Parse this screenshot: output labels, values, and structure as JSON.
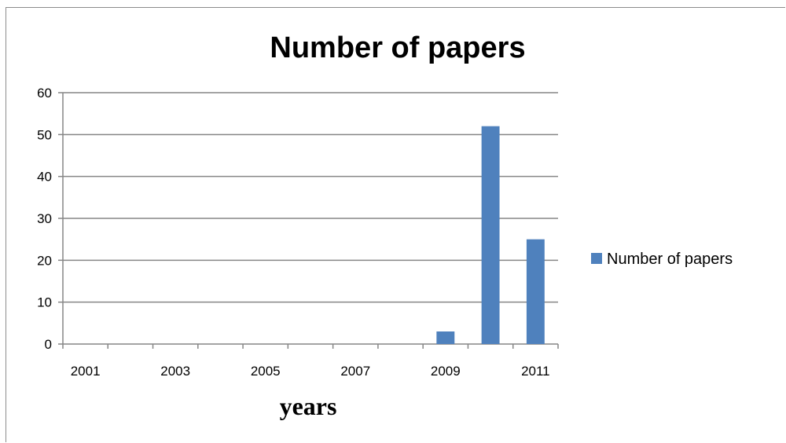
{
  "chart_data": {
    "type": "bar",
    "title": "Number of papers",
    "xlabel": "years",
    "ylabel": "",
    "categories": [
      "2001",
      "2002",
      "2003",
      "2004",
      "2005",
      "2006",
      "2007",
      "2008",
      "2009",
      "2010",
      "2011"
    ],
    "x_tick_labels": [
      "2001",
      "2003",
      "2005",
      "2007",
      "2009",
      "2011"
    ],
    "series": [
      {
        "name": "Number of papers",
        "values": [
          0,
          0,
          0,
          0,
          0,
          0,
          0,
          0,
          3,
          52,
          25
        ]
      }
    ],
    "ylim": [
      0,
      60
    ],
    "y_ticks": [
      0,
      10,
      20,
      30,
      40,
      50,
      60
    ],
    "grid": "horizontal",
    "legend": "right",
    "colors": {
      "bar": "#4f81bd",
      "grid": "#868686",
      "axis": "#868686"
    }
  }
}
